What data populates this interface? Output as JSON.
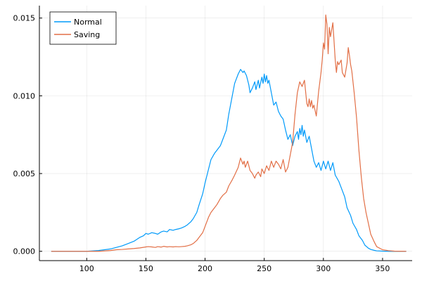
{
  "chart_data": {
    "type": "line",
    "title": "",
    "xlabel": "",
    "ylabel": "",
    "xlim": [
      60,
      375
    ],
    "ylim": [
      -0.0006,
      0.0158
    ],
    "xticks": [
      100,
      150,
      200,
      250,
      300,
      350
    ],
    "xtick_labels": [
      "100",
      "150",
      "200",
      "250",
      "300",
      "350"
    ],
    "yticks": [
      0.0,
      0.005,
      0.01,
      0.015
    ],
    "ytick_labels": [
      "0.000",
      "0.005",
      "0.010",
      "0.015"
    ],
    "grid": true,
    "legend_position": "top-left",
    "series": [
      {
        "name": "Normal",
        "color": "#009AFA",
        "x": [
          70,
          80,
          90,
          100,
          110,
          115,
          120,
          125,
          130,
          135,
          140,
          145,
          148,
          150,
          152,
          155,
          158,
          160,
          163,
          165,
          168,
          170,
          173,
          175,
          178,
          180,
          183,
          185,
          188,
          190,
          193,
          195,
          198,
          200,
          203,
          205,
          208,
          210,
          213,
          215,
          218,
          220,
          223,
          225,
          228,
          230,
          232,
          233,
          235,
          237,
          238,
          240,
          242,
          243,
          245,
          246,
          248,
          249,
          250,
          251,
          252,
          253,
          254,
          256,
          258,
          260,
          262,
          264,
          266,
          268,
          270,
          272,
          274,
          276,
          278,
          279,
          280,
          281,
          282,
          283,
          284,
          286,
          288,
          290,
          292,
          294,
          296,
          298,
          300,
          302,
          304,
          306,
          308,
          310,
          313,
          315,
          318,
          320,
          323,
          325,
          328,
          330,
          333,
          335,
          338,
          340,
          343,
          345,
          350,
          355,
          360,
          370
        ],
        "y": [
          0.0,
          0.0,
          0.0,
          0.0,
          5e-05,
          0.0001,
          0.00015,
          0.00025,
          0.00035,
          0.0005,
          0.00065,
          0.0009,
          0.001,
          0.00115,
          0.0011,
          0.0012,
          0.00115,
          0.0011,
          0.00125,
          0.0013,
          0.00125,
          0.0014,
          0.00135,
          0.0014,
          0.00145,
          0.0015,
          0.0016,
          0.0017,
          0.0019,
          0.0021,
          0.0025,
          0.003,
          0.0037,
          0.0044,
          0.0053,
          0.0059,
          0.0063,
          0.0065,
          0.0068,
          0.0072,
          0.0078,
          0.0088,
          0.01,
          0.0108,
          0.0114,
          0.0117,
          0.0115,
          0.0116,
          0.0113,
          0.0107,
          0.0102,
          0.0105,
          0.0109,
          0.0104,
          0.011,
          0.0105,
          0.0112,
          0.0108,
          0.0114,
          0.0109,
          0.0113,
          0.0108,
          0.011,
          0.0102,
          0.0094,
          0.0096,
          0.009,
          0.0087,
          0.0085,
          0.0078,
          0.0072,
          0.0075,
          0.0068,
          0.0074,
          0.0077,
          0.0072,
          0.0079,
          0.0075,
          0.0081,
          0.0074,
          0.0078,
          0.007,
          0.0074,
          0.0066,
          0.0058,
          0.0054,
          0.0057,
          0.0052,
          0.0058,
          0.0053,
          0.0058,
          0.0052,
          0.0057,
          0.0049,
          0.0045,
          0.0041,
          0.0035,
          0.0028,
          0.0023,
          0.0018,
          0.0014,
          0.001,
          0.0007,
          0.0004,
          0.0002,
          0.00012,
          6e-05,
          3e-05,
          1e-05,
          0.0,
          0.0,
          0.0
        ]
      },
      {
        "name": "Saving",
        "color": "#E26F46",
        "x": [
          70,
          80,
          90,
          100,
          110,
          120,
          125,
          130,
          135,
          140,
          145,
          150,
          152,
          155,
          158,
          160,
          163,
          165,
          168,
          170,
          173,
          175,
          178,
          180,
          183,
          185,
          188,
          190,
          193,
          195,
          198,
          200,
          203,
          205,
          208,
          210,
          213,
          215,
          218,
          220,
          223,
          225,
          228,
          230,
          232,
          233,
          234,
          235,
          236,
          237,
          238,
          240,
          242,
          243,
          245,
          247,
          248,
          250,
          252,
          254,
          256,
          258,
          260,
          262,
          264,
          266,
          268,
          270,
          272,
          274,
          276,
          278,
          280,
          282,
          284,
          286,
          287,
          288,
          289,
          290,
          291,
          292,
          294,
          296,
          298,
          299,
          300,
          301,
          302,
          303,
          304,
          305,
          306,
          308,
          310,
          311,
          312,
          313,
          315,
          316,
          318,
          320,
          321,
          322,
          323,
          324,
          326,
          328,
          330,
          332,
          334,
          336,
          338,
          340,
          343,
          345,
          350,
          355,
          360,
          370
        ],
        "y": [
          0.0,
          0.0,
          0.0,
          0.0,
          0.0,
          5e-05,
          0.0001,
          0.00012,
          0.00015,
          0.00018,
          0.00022,
          0.00028,
          0.0003,
          0.00028,
          0.00025,
          0.0003,
          0.00027,
          0.00032,
          0.00028,
          0.0003,
          0.00028,
          0.0003,
          0.00029,
          0.0003,
          0.00032,
          0.00035,
          0.00042,
          0.0005,
          0.0007,
          0.0009,
          0.0012,
          0.0016,
          0.0022,
          0.0025,
          0.0028,
          0.003,
          0.0034,
          0.0036,
          0.0038,
          0.0042,
          0.0046,
          0.0049,
          0.0054,
          0.006,
          0.0056,
          0.0058,
          0.0054,
          0.0056,
          0.0058,
          0.0055,
          0.0052,
          0.005,
          0.0047,
          0.0049,
          0.0051,
          0.0048,
          0.0053,
          0.005,
          0.0055,
          0.0052,
          0.0058,
          0.0054,
          0.0058,
          0.0056,
          0.0053,
          0.0059,
          0.0051,
          0.0054,
          0.0062,
          0.007,
          0.0088,
          0.0102,
          0.0109,
          0.0106,
          0.011,
          0.0095,
          0.0093,
          0.0098,
          0.0093,
          0.0097,
          0.0092,
          0.0094,
          0.0087,
          0.0103,
          0.0115,
          0.0123,
          0.0134,
          0.013,
          0.0152,
          0.0146,
          0.0127,
          0.0144,
          0.0138,
          0.0147,
          0.0123,
          0.0115,
          0.0122,
          0.012,
          0.0123,
          0.0115,
          0.0112,
          0.0121,
          0.0131,
          0.0126,
          0.012,
          0.0116,
          0.0102,
          0.0086,
          0.0065,
          0.0048,
          0.0034,
          0.0025,
          0.0018,
          0.0011,
          0.0006,
          0.0003,
          0.0001,
          4e-05,
          1e-05,
          0.0
        ]
      }
    ]
  }
}
